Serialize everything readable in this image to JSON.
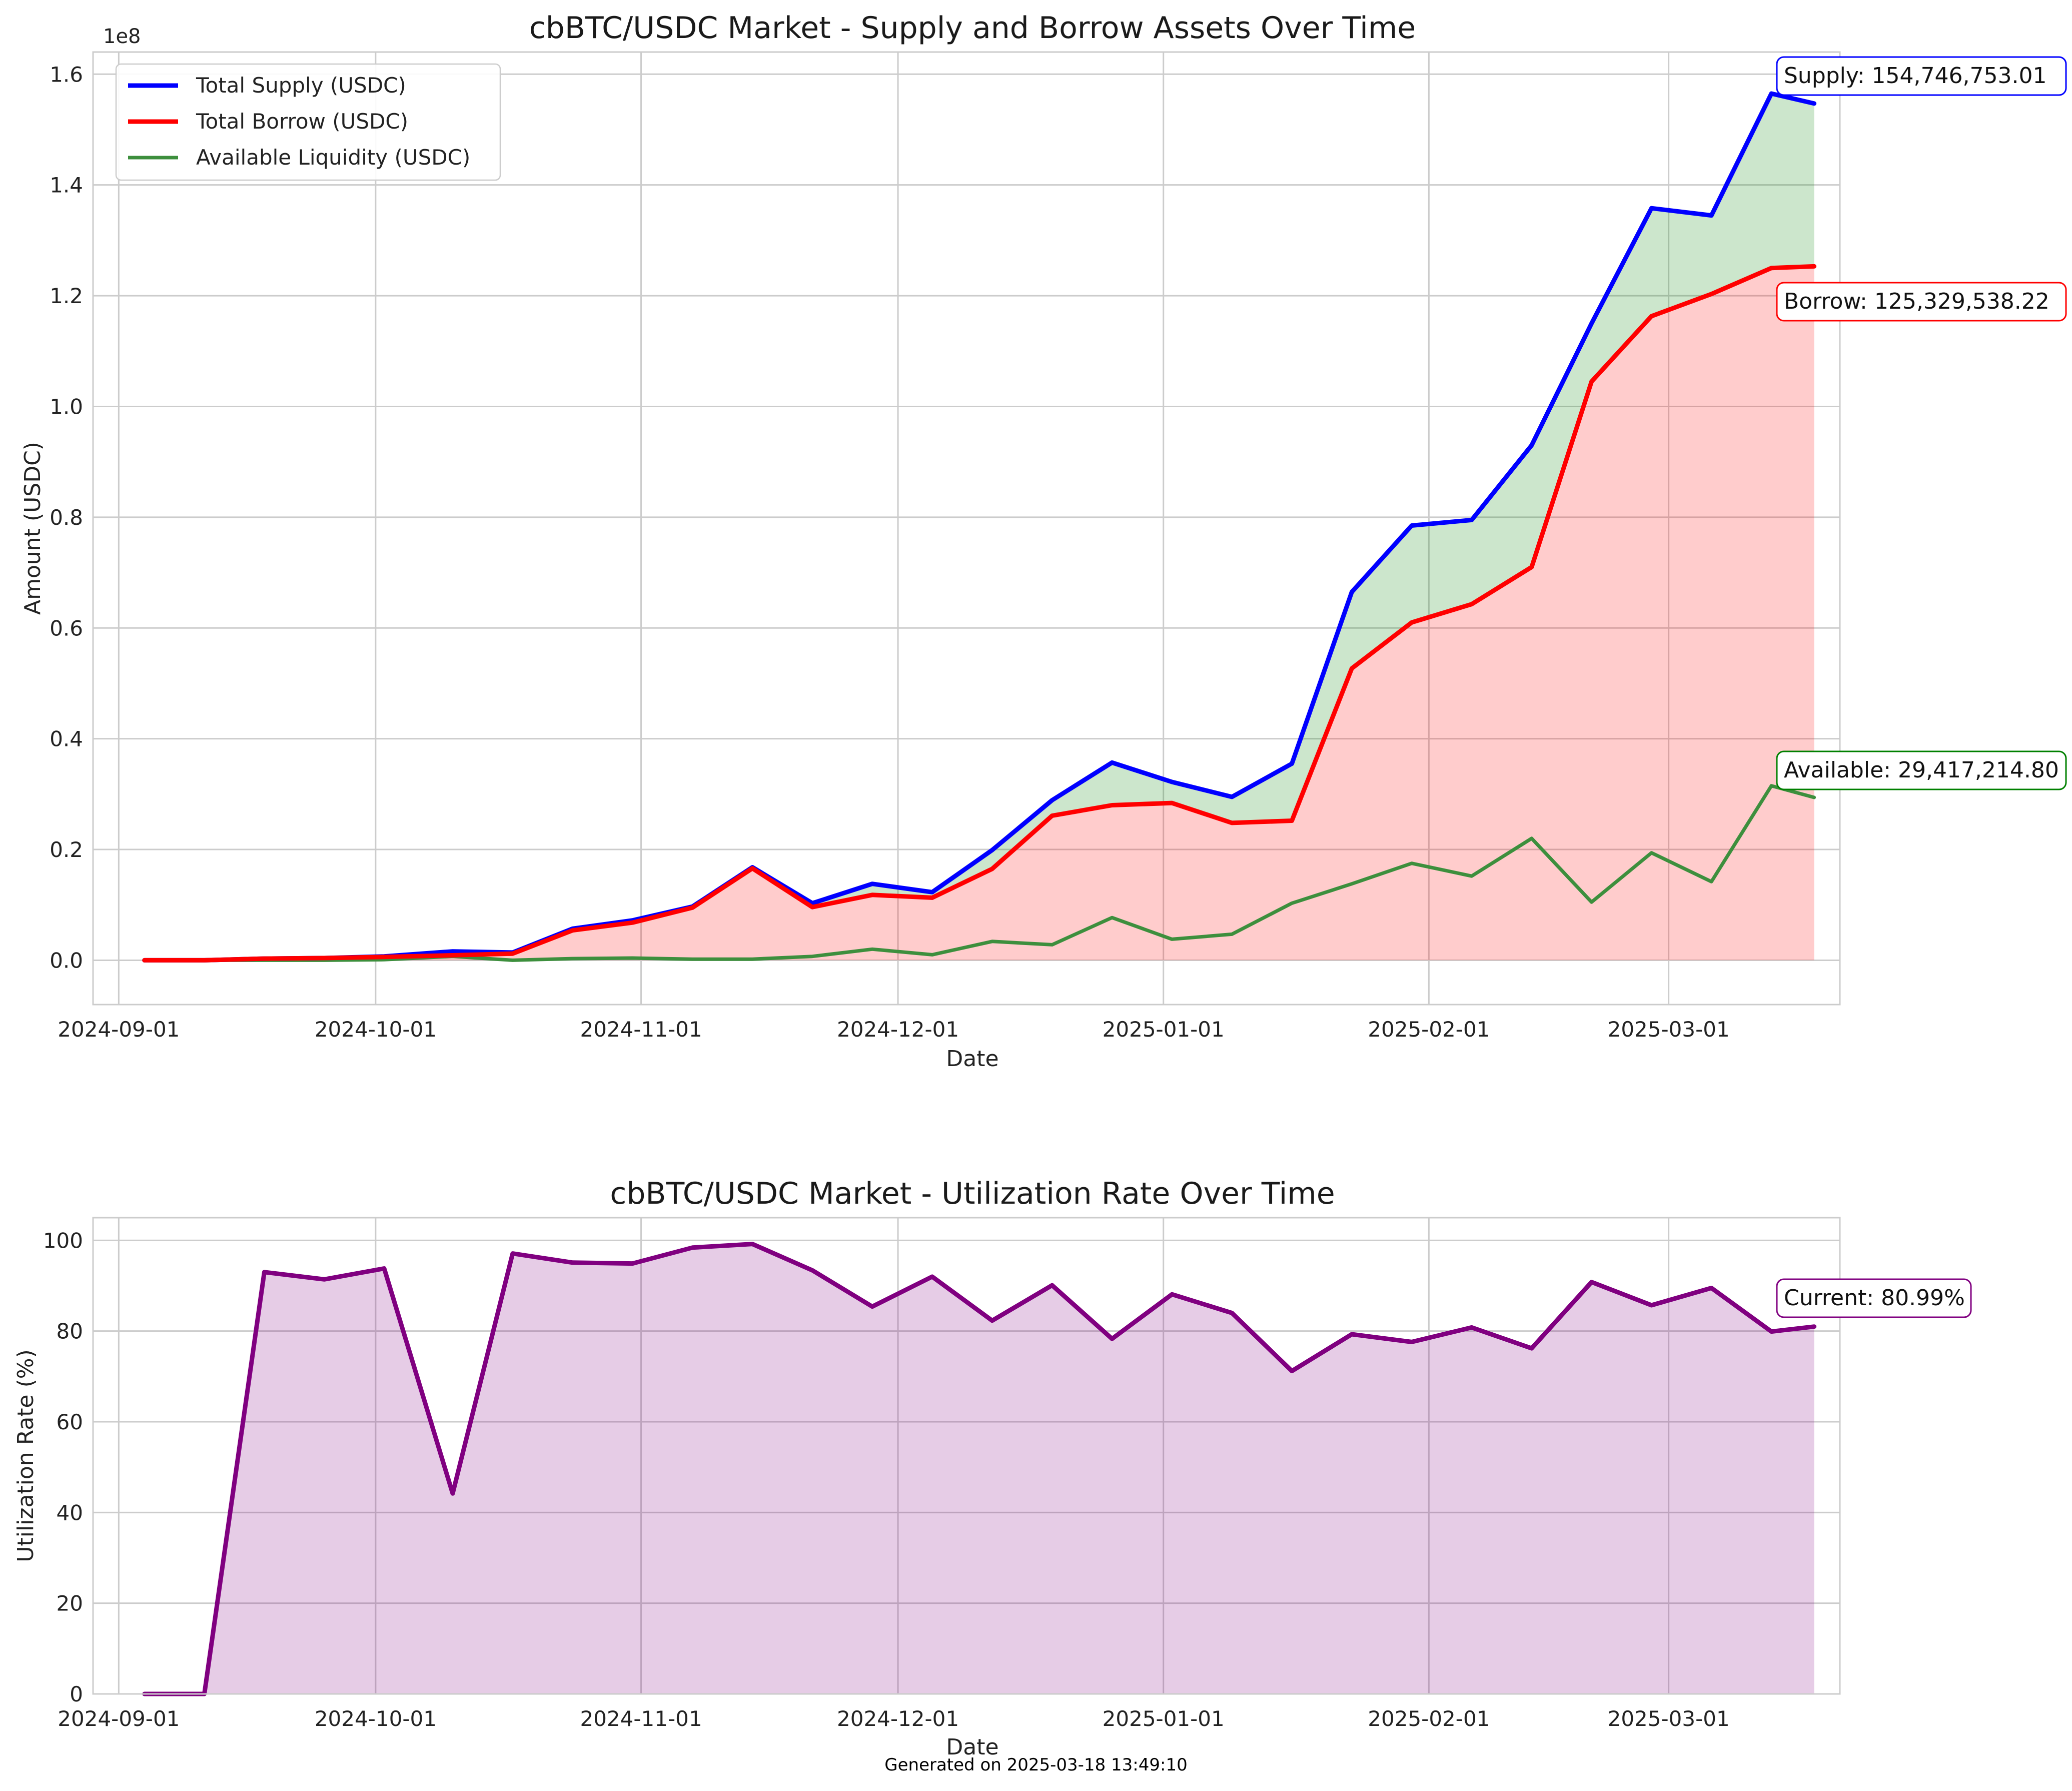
{
  "footer": "Generated on 2025-03-18 13:49:10",
  "chart_data": [
    {
      "type": "line",
      "title": "cbBTC/USDC Market - Supply and Borrow Assets Over Time",
      "xlabel": "Date",
      "ylabel": "Amount (USDC)",
      "y_offset_label": "1e8",
      "xlim": [
        "2024-08-29",
        "2025-03-21"
      ],
      "ylim": [
        -0.08,
        1.64
      ],
      "x_ticks": [
        "2024-09-01",
        "2024-10-01",
        "2024-11-01",
        "2024-12-01",
        "2025-01-01",
        "2025-02-01",
        "2025-03-01"
      ],
      "y_ticks": [
        "0.0",
        "0.2",
        "0.4",
        "0.6",
        "0.8",
        "1.0",
        "1.2",
        "1.4",
        "1.6"
      ],
      "y_tick_values": [
        0,
        0.2,
        0.4,
        0.6,
        0.8,
        1.0,
        1.2,
        1.4,
        1.6
      ],
      "grid": true,
      "legend_position": "top-left",
      "x": [
        "2024-09-04",
        "2024-09-11",
        "2024-09-18",
        "2024-09-25",
        "2024-10-02",
        "2024-10-10",
        "2024-10-17",
        "2024-10-24",
        "2024-10-31",
        "2024-11-07",
        "2024-11-14",
        "2024-11-21",
        "2024-11-28",
        "2024-12-05",
        "2024-12-12",
        "2024-12-19",
        "2024-12-26",
        "2025-01-02",
        "2025-01-09",
        "2025-01-16",
        "2025-01-23",
        "2025-01-30",
        "2025-02-06",
        "2025-02-13",
        "2025-02-20",
        "2025-02-27",
        "2025-03-06",
        "2025-03-13",
        "2025-03-18"
      ],
      "series": [
        {
          "name": "Total Supply (USDC)",
          "color": "#0000ff",
          "values": [
            0.0,
            0.0,
            0.003,
            0.004,
            0.007,
            0.016,
            0.014,
            0.057,
            0.072,
            0.097,
            0.168,
            0.103,
            0.138,
            0.123,
            0.199,
            0.289,
            0.357,
            0.322,
            0.295,
            0.355,
            0.665,
            0.785,
            0.795,
            0.93,
            1.15,
            1.358,
            1.345,
            1.565,
            1.547
          ]
        },
        {
          "name": "Total Borrow (USDC)",
          "color": "#ff0000",
          "values": [
            0.0,
            0.0,
            0.003,
            0.004,
            0.006,
            0.009,
            0.012,
            0.054,
            0.068,
            0.095,
            0.166,
            0.096,
            0.118,
            0.113,
            0.165,
            0.261,
            0.28,
            0.284,
            0.248,
            0.252,
            0.527,
            0.61,
            0.643,
            0.71,
            1.045,
            1.163,
            1.203,
            1.25,
            1.253
          ]
        },
        {
          "name": "Available Liquidity (USDC)",
          "color": "#3d8f3d",
          "values": [
            0.0,
            0.0,
            0.0,
            0.0,
            0.001,
            0.007,
            0.0,
            0.003,
            0.004,
            0.002,
            0.002,
            0.007,
            0.02,
            0.01,
            0.034,
            0.028,
            0.077,
            0.038,
            0.047,
            0.103,
            0.138,
            0.175,
            0.152,
            0.22,
            0.105,
            0.194,
            0.142,
            0.315,
            0.294
          ]
        }
      ],
      "annotations": [
        {
          "text": "Supply: 154,746,753.01",
          "color": "#0000ff",
          "y": 1.547
        },
        {
          "text": "Borrow: 125,329,538.22",
          "color": "#ff0000",
          "y": 1.253
        },
        {
          "text": "Available: 29,417,214.80",
          "color": "#008000",
          "y": 0.294
        }
      ]
    },
    {
      "type": "area",
      "title": "cbBTC/USDC Market - Utilization Rate Over Time",
      "xlabel": "Date",
      "ylabel": "Utilization Rate (%)",
      "xlim": [
        "2024-08-29",
        "2025-03-21"
      ],
      "ylim": [
        0,
        105
      ],
      "x_ticks": [
        "2024-09-01",
        "2024-10-01",
        "2024-11-01",
        "2024-12-01",
        "2025-01-01",
        "2025-02-01",
        "2025-03-01"
      ],
      "y_ticks": [
        "0",
        "20",
        "40",
        "60",
        "80",
        "100"
      ],
      "y_tick_values": [
        0,
        20,
        40,
        60,
        80,
        100
      ],
      "grid": true,
      "x": [
        "2024-09-04",
        "2024-09-11",
        "2024-09-18",
        "2024-09-25",
        "2024-10-02",
        "2024-10-10",
        "2024-10-17",
        "2024-10-24",
        "2024-10-31",
        "2024-11-07",
        "2024-11-14",
        "2024-11-21",
        "2024-11-28",
        "2024-12-05",
        "2024-12-12",
        "2024-12-19",
        "2024-12-26",
        "2025-01-02",
        "2025-01-09",
        "2025-01-16",
        "2025-01-23",
        "2025-01-30",
        "2025-02-06",
        "2025-02-13",
        "2025-02-20",
        "2025-02-27",
        "2025-03-06",
        "2025-03-13",
        "2025-03-18"
      ],
      "series": [
        {
          "color": "#800080",
          "values": [
            0,
            0,
            93.0,
            91.4,
            93.8,
            44.2,
            97.1,
            95.1,
            94.9,
            98.4,
            99.2,
            93.4,
            85.4,
            92.0,
            82.3,
            90.1,
            78.3,
            88.1,
            84.0,
            71.2,
            79.3,
            77.6,
            80.8,
            76.2,
            90.8,
            85.7,
            89.5,
            79.9,
            80.99
          ]
        }
      ],
      "annotations": [
        {
          "text": "Current: 80.99%",
          "color": "#800080",
          "y": 80.99
        }
      ]
    }
  ]
}
